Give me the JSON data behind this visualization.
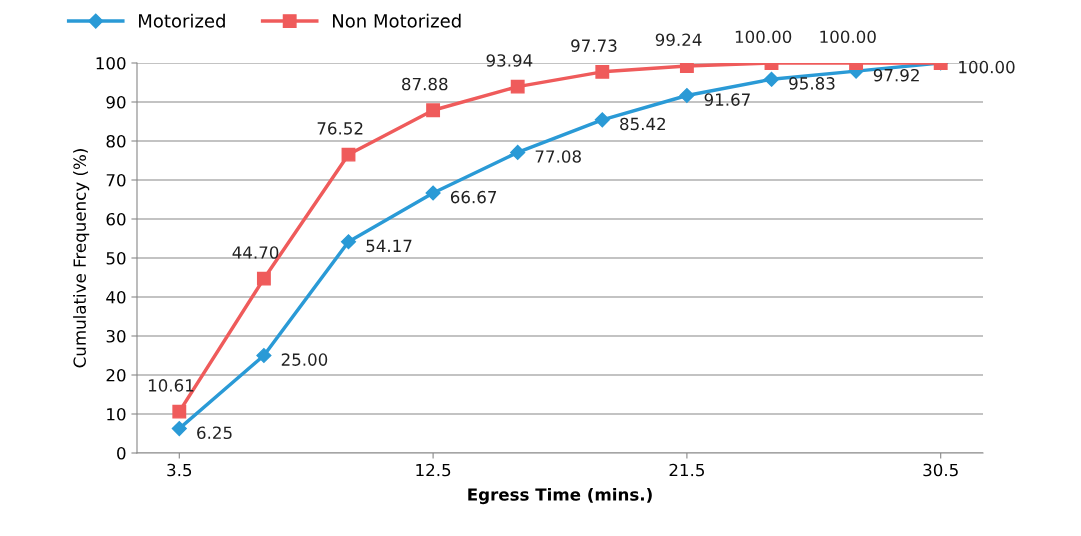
{
  "chart_data": {
    "type": "line",
    "x": [
      3.5,
      6.5,
      9.5,
      12.5,
      15.5,
      18.5,
      21.5,
      24.5,
      27.5,
      30.5
    ],
    "series": [
      {
        "name": "Motorized",
        "color": "#2a9ad6",
        "marker": "diamond",
        "values": [
          6.25,
          25.0,
          54.17,
          66.67,
          77.08,
          85.42,
          91.67,
          95.83,
          97.92,
          100.0
        ],
        "value_labels": [
          "6.25",
          "25.00",
          "54.17",
          "66.67",
          "77.08",
          "85.42",
          "91.67",
          "95.83",
          "97.92",
          "100.00"
        ]
      },
      {
        "name": "Non Motorized",
        "color": "#ef5b5b",
        "marker": "square",
        "values": [
          10.61,
          44.7,
          76.52,
          87.88,
          93.94,
          97.73,
          99.24,
          100.0,
          100.0,
          100.0
        ],
        "value_labels": [
          "10.61",
          "44.70",
          "76.52",
          "87.88",
          "93.94",
          "97.73",
          "99.24",
          "100.00",
          "100.00",
          null
        ]
      }
    ],
    "xlabel": "Egress Time (mins.)",
    "ylabel": "Cumulative Frequency (%)",
    "xlim": [
      2,
      32
    ],
    "xticks": [
      3.5,
      12.5,
      21.5,
      30.5
    ],
    "ylim": [
      0,
      100
    ],
    "yticks": [
      0,
      10,
      20,
      30,
      40,
      50,
      60,
      70,
      80,
      90,
      100
    ],
    "grid": "y",
    "legend": "top left",
    "line_style": "solid"
  }
}
